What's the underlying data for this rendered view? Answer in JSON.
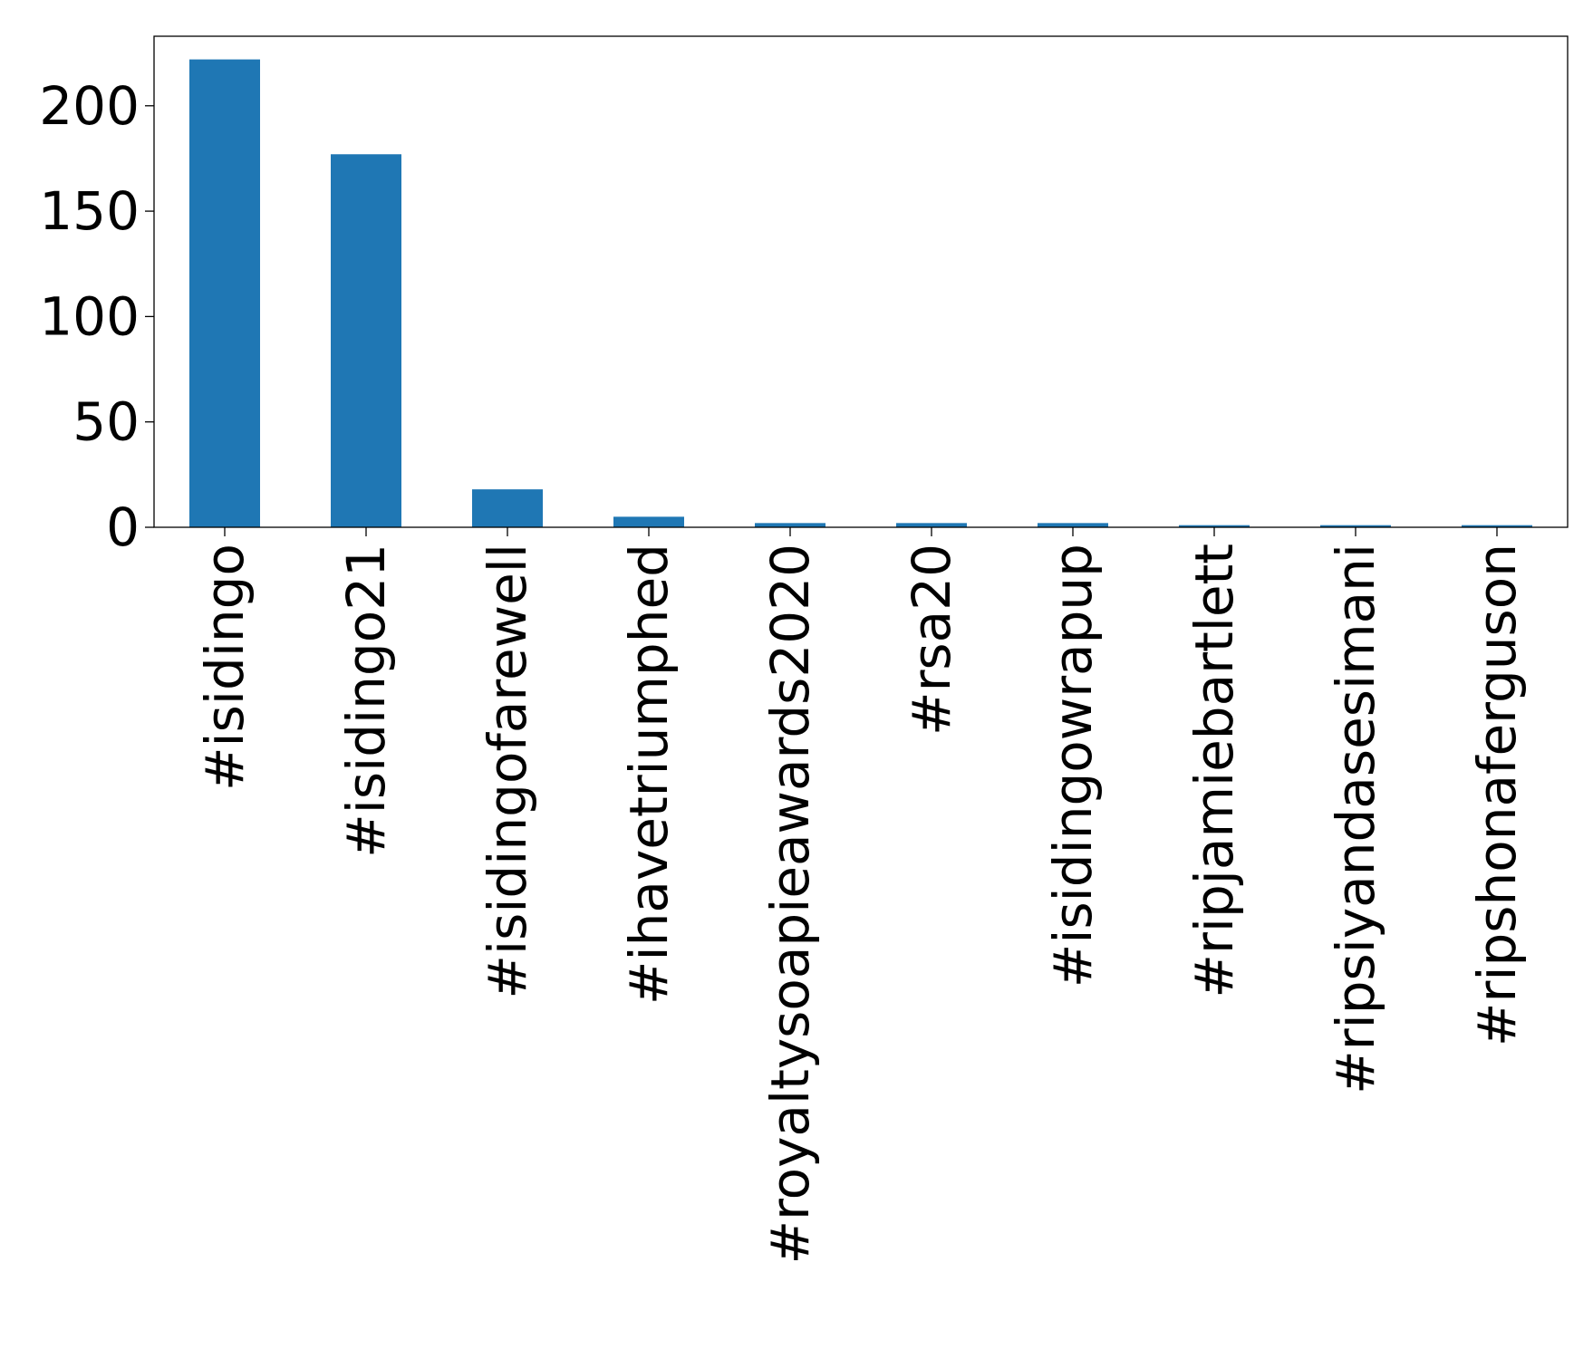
{
  "chart_data": {
    "type": "bar",
    "title": "",
    "xlabel": "",
    "ylabel": "",
    "categories": [
      "#isidingo",
      "#isidingo21",
      "#isidingofarewell",
      "#ihavetriumphed",
      "#royaltysoapieawards2020",
      "#rsa20",
      "#isidingowrapup",
      "#ripjamiebartlett",
      "#ripsiyandasesimani",
      "#ripshonaferguson"
    ],
    "values": [
      222,
      177,
      18,
      5,
      2,
      2,
      2,
      1,
      1,
      1
    ],
    "ylim": [
      0,
      233
    ],
    "yticks": [
      0,
      50,
      100,
      150,
      200
    ],
    "bar_color": "#1f77b4",
    "grid": false,
    "legend": "none"
  }
}
